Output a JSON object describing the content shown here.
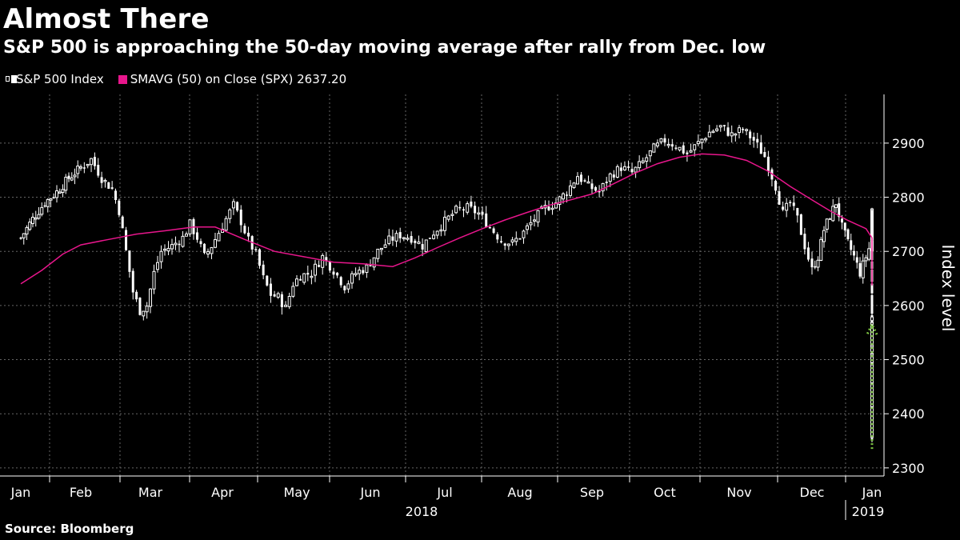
{
  "header": {
    "title": "Almost There",
    "subtitle": "S&P 500 is approaching the 50-day moving average after rally from Dec. low"
  },
  "legend": {
    "items": [
      {
        "label": "S&P 500 Index",
        "color": "#ffffff"
      },
      {
        "label": "SMAVG (50)  on Close (SPX) 2637.20",
        "color": "#e8168c"
      }
    ]
  },
  "source": "Source: Bloomberg",
  "colors": {
    "background": "#000000",
    "candle": "#ffffff",
    "sma": "#e8168c",
    "arrow": "#7cc242",
    "grid": "#666666"
  },
  "chart_data": {
    "type": "line",
    "ylabel": "Index level",
    "ylim": [
      2285,
      2990
    ],
    "yticks": [
      2300,
      2400,
      2500,
      2600,
      2700,
      2800,
      2900
    ],
    "grid": true,
    "legend_position": "top-left",
    "month_labels": [
      "Jan",
      "Feb",
      "Mar",
      "Apr",
      "May",
      "Jun",
      "Jul",
      "Aug",
      "Sep",
      "Oct",
      "Nov",
      "Dec",
      "Jan"
    ],
    "year_labels": [
      "2018",
      "2019"
    ],
    "series": [
      {
        "name": "S&P 500 Index",
        "style": "candlestick",
        "points": [
          [
            0.0,
            2725
          ],
          [
            0.2,
            2760
          ],
          [
            0.4,
            2790
          ],
          [
            0.6,
            2810
          ],
          [
            0.8,
            2835
          ],
          [
            1.0,
            2855
          ],
          [
            1.15,
            2870
          ],
          [
            1.3,
            2835
          ],
          [
            1.45,
            2815
          ],
          [
            1.55,
            2775
          ],
          [
            1.65,
            2700
          ],
          [
            1.75,
            2625
          ],
          [
            1.85,
            2590
          ],
          [
            1.95,
            2600
          ],
          [
            2.05,
            2660
          ],
          [
            2.15,
            2700
          ],
          [
            2.3,
            2710
          ],
          [
            2.45,
            2725
          ],
          [
            2.55,
            2750
          ],
          [
            2.65,
            2725
          ],
          [
            2.75,
            2690
          ],
          [
            2.85,
            2710
          ],
          [
            2.95,
            2735
          ],
          [
            3.05,
            2760
          ],
          [
            3.15,
            2785
          ],
          [
            3.25,
            2755
          ],
          [
            3.35,
            2720
          ],
          [
            3.45,
            2695
          ],
          [
            3.55,
            2650
          ],
          [
            3.65,
            2620
          ],
          [
            3.75,
            2615
          ],
          [
            3.85,
            2595
          ],
          [
            3.95,
            2640
          ],
          [
            4.05,
            2655
          ],
          [
            4.2,
            2660
          ],
          [
            4.35,
            2690
          ],
          [
            4.5,
            2665
          ],
          [
            4.65,
            2635
          ],
          [
            4.8,
            2660
          ],
          [
            4.95,
            2670
          ],
          [
            5.1,
            2700
          ],
          [
            5.25,
            2720
          ],
          [
            5.4,
            2730
          ],
          [
            5.55,
            2725
          ],
          [
            5.7,
            2710
          ],
          [
            5.85,
            2735
          ],
          [
            6.0,
            2755
          ],
          [
            6.15,
            2775
          ],
          [
            6.3,
            2780
          ],
          [
            6.45,
            2770
          ],
          [
            6.6,
            2745
          ],
          [
            6.75,
            2720
          ],
          [
            6.9,
            2715
          ],
          [
            7.05,
            2735
          ],
          [
            7.2,
            2760
          ],
          [
            7.35,
            2780
          ],
          [
            7.5,
            2790
          ],
          [
            7.65,
            2810
          ],
          [
            7.8,
            2840
          ],
          [
            7.95,
            2820
          ],
          [
            8.1,
            2810
          ],
          [
            8.25,
            2840
          ],
          [
            8.4,
            2855
          ],
          [
            8.55,
            2845
          ],
          [
            8.7,
            2865
          ],
          [
            8.85,
            2890
          ],
          [
            9.0,
            2905
          ],
          [
            9.15,
            2895
          ],
          [
            9.3,
            2880
          ],
          [
            9.45,
            2900
          ],
          [
            9.6,
            2920
          ],
          [
            9.75,
            2930
          ],
          [
            9.9,
            2915
          ],
          [
            10.05,
            2925
          ],
          [
            10.2,
            2905
          ],
          [
            10.35,
            2875
          ],
          [
            10.5,
            2820
          ],
          [
            10.6,
            2770
          ],
          [
            10.7,
            2790
          ],
          [
            10.8,
            2760
          ],
          [
            10.9,
            2710
          ],
          [
            11.0,
            2665
          ],
          [
            11.1,
            2690
          ],
          [
            11.2,
            2740
          ],
          [
            11.3,
            2765
          ],
          [
            11.4,
            2790
          ],
          [
            11.5,
            2745
          ],
          [
            11.6,
            2715
          ],
          [
            11.7,
            2690
          ],
          [
            11.8,
            2660
          ],
          [
            11.9,
            2690
          ],
          [
            12.0,
            2720
          ],
          [
            12.1,
            2745
          ],
          [
            12.2,
            2770
          ],
          [
            12.3,
            2720
          ],
          [
            12.4,
            2680
          ],
          [
            12.5,
            2650
          ],
          [
            12.6,
            2630
          ],
          [
            12.7,
            2580
          ],
          [
            12.8,
            2540
          ],
          [
            12.9,
            2490
          ],
          [
            13.0,
            2460
          ],
          [
            13.1,
            2380
          ],
          [
            13.2,
            2350
          ],
          [
            13.3,
            2470
          ],
          [
            13.4,
            2490
          ],
          [
            13.5,
            2460
          ],
          [
            13.6,
            2520
          ],
          [
            13.7,
            2560
          ],
          [
            13.8,
            2585
          ]
        ]
      },
      {
        "name": "SMAVG (50)  on Close (SPX) 2637.20",
        "style": "line",
        "points": [
          [
            0.0,
            2640
          ],
          [
            0.35,
            2665
          ],
          [
            0.7,
            2695
          ],
          [
            1.0,
            2712
          ],
          [
            1.4,
            2722
          ],
          [
            1.8,
            2732
          ],
          [
            2.2,
            2738
          ],
          [
            2.6,
            2745
          ],
          [
            2.9,
            2745
          ],
          [
            3.3,
            2722
          ],
          [
            3.7,
            2700
          ],
          [
            4.1,
            2690
          ],
          [
            4.5,
            2680
          ],
          [
            4.9,
            2677
          ],
          [
            5.3,
            2672
          ],
          [
            5.6,
            2688
          ],
          [
            5.9,
            2707
          ],
          [
            6.2,
            2725
          ],
          [
            6.5,
            2742
          ],
          [
            6.8,
            2758
          ],
          [
            7.1,
            2772
          ],
          [
            7.4,
            2785
          ],
          [
            7.7,
            2795
          ],
          [
            8.0,
            2806
          ],
          [
            8.3,
            2825
          ],
          [
            8.6,
            2845
          ],
          [
            8.9,
            2862
          ],
          [
            9.2,
            2874
          ],
          [
            9.5,
            2880
          ],
          [
            9.8,
            2878
          ],
          [
            10.1,
            2868
          ],
          [
            10.4,
            2848
          ],
          [
            10.7,
            2820
          ],
          [
            11.0,
            2795
          ],
          [
            11.3,
            2775
          ],
          [
            11.6,
            2757
          ],
          [
            11.9,
            2742
          ],
          [
            12.2,
            2725
          ],
          [
            12.5,
            2700
          ],
          [
            12.8,
            2665
          ],
          [
            13.1,
            2648
          ],
          [
            13.4,
            2637
          ]
        ]
      }
    ]
  }
}
